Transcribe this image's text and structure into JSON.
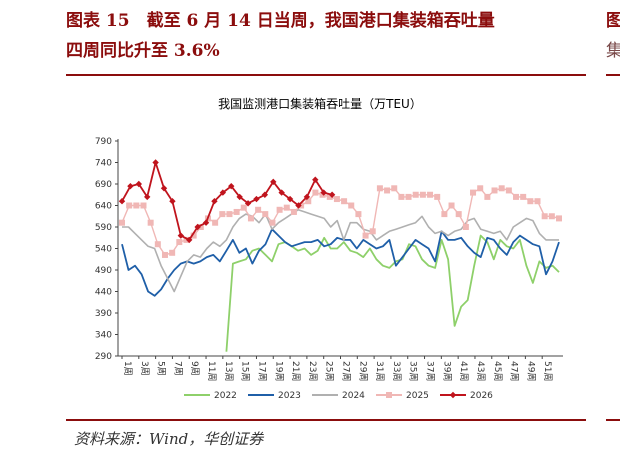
{
  "figure": {
    "title_line1": "图表 15　截至 6 月 14 日当周，我国港口集装箱吞吐量",
    "title_line2": "四周同比升至 3.6%",
    "source": "资料来源：Wind，华创证券",
    "clipped_right_line1": "图",
    "clipped_right_line2": "集"
  },
  "colors": {
    "title": "#8b0d0d",
    "s2022": "#8ed06a",
    "s2023": "#1f5fa8",
    "s2024": "#b0b0b0",
    "s2025": "#f0b7b5",
    "s2026": "#c0141d"
  },
  "chart_data": {
    "type": "line",
    "title": "我国监测港口集装箱吞吐量（万TEU）",
    "x_ticks": [
      "1周",
      "3周",
      "5周",
      "7周",
      "9周",
      "11周",
      "13周",
      "15周",
      "17周",
      "19周",
      "21周",
      "23周",
      "25周",
      "27周",
      "29周",
      "31周",
      "33周",
      "35周",
      "37周",
      "39周",
      "41周",
      "43周",
      "45周",
      "47周",
      "49周",
      "51周"
    ],
    "ylim": [
      290,
      790
    ],
    "y_ticks": [
      290,
      340,
      390,
      440,
      490,
      540,
      590,
      640,
      690,
      740,
      790
    ],
    "grid": false,
    "legend_position": "bottom",
    "series": [
      {
        "name": "2022",
        "values": [
          null,
          null,
          null,
          null,
          null,
          null,
          null,
          null,
          null,
          null,
          null,
          null,
          null,
          null,
          null,
          null,
          300,
          505,
          510,
          515,
          535,
          540,
          525,
          510,
          550,
          555,
          545,
          535,
          540,
          525,
          535,
          565,
          540,
          540,
          555,
          535,
          530,
          520,
          540,
          515,
          500,
          495,
          510,
          515,
          550,
          545,
          515,
          500,
          495,
          560,
          515,
          360,
          405,
          420,
          500,
          570,
          555,
          515,
          560,
          545,
          540,
          560,
          500,
          460,
          510,
          495,
          500,
          485
        ]
      },
      {
        "name": "2023",
        "values": [
          550,
          490,
          500,
          480,
          440,
          430,
          445,
          470,
          490,
          505,
          510,
          505,
          510,
          520,
          525,
          510,
          535,
          560,
          530,
          540,
          505,
          535,
          550,
          585,
          570,
          555,
          545,
          550,
          555,
          555,
          560,
          545,
          550,
          565,
          560,
          560,
          540,
          560,
          550,
          540,
          545,
          560,
          500,
          520,
          540,
          560,
          550,
          540,
          510,
          580,
          560,
          560,
          565,
          545,
          530,
          520,
          565,
          560,
          540,
          525,
          555,
          570,
          560,
          550,
          545,
          480,
          510,
          555
        ]
      },
      {
        "name": "2024",
        "values": [
          590,
          590,
          575,
          560,
          545,
          540,
          500,
          470,
          440,
          475,
          510,
          525,
          520,
          540,
          555,
          545,
          560,
          590,
          610,
          620,
          615,
          600,
          620,
          585,
          600,
          610,
          620,
          630,
          625,
          620,
          615,
          610,
          590,
          605,
          560,
          600,
          600,
          585,
          580,
          560,
          570,
          580,
          585,
          590,
          595,
          600,
          615,
          590,
          575,
          580,
          570,
          580,
          585,
          605,
          610,
          585,
          580,
          575,
          580,
          560,
          590,
          600,
          610,
          605,
          575,
          560,
          560,
          560
        ]
      },
      {
        "name": "2025",
        "values": [
          600,
          640,
          640,
          640,
          600,
          550,
          525,
          530,
          555,
          560,
          570,
          590,
          610,
          600,
          620,
          620,
          625,
          635,
          610,
          630,
          620,
          600,
          630,
          635,
          625,
          640,
          650,
          670,
          665,
          660,
          655,
          650,
          640,
          620,
          570,
          580,
          680,
          675,
          680,
          660,
          660,
          665,
          665,
          665,
          660,
          620,
          640,
          620,
          590,
          670,
          680,
          660,
          675,
          680,
          675,
          660,
          660,
          650,
          650,
          615,
          615,
          610
        ]
      },
      {
        "name": "2026",
        "values": [
          650,
          685,
          690,
          660,
          740,
          680,
          650,
          570,
          560,
          590,
          600,
          650,
          670,
          685,
          660,
          645,
          655,
          665,
          695,
          670,
          655,
          640,
          660,
          700,
          670,
          665
        ]
      }
    ]
  },
  "legend": {
    "l2022": "2022",
    "l2023": "2023",
    "l2024": "2024",
    "l2025": "2025",
    "l2026": "2026"
  }
}
